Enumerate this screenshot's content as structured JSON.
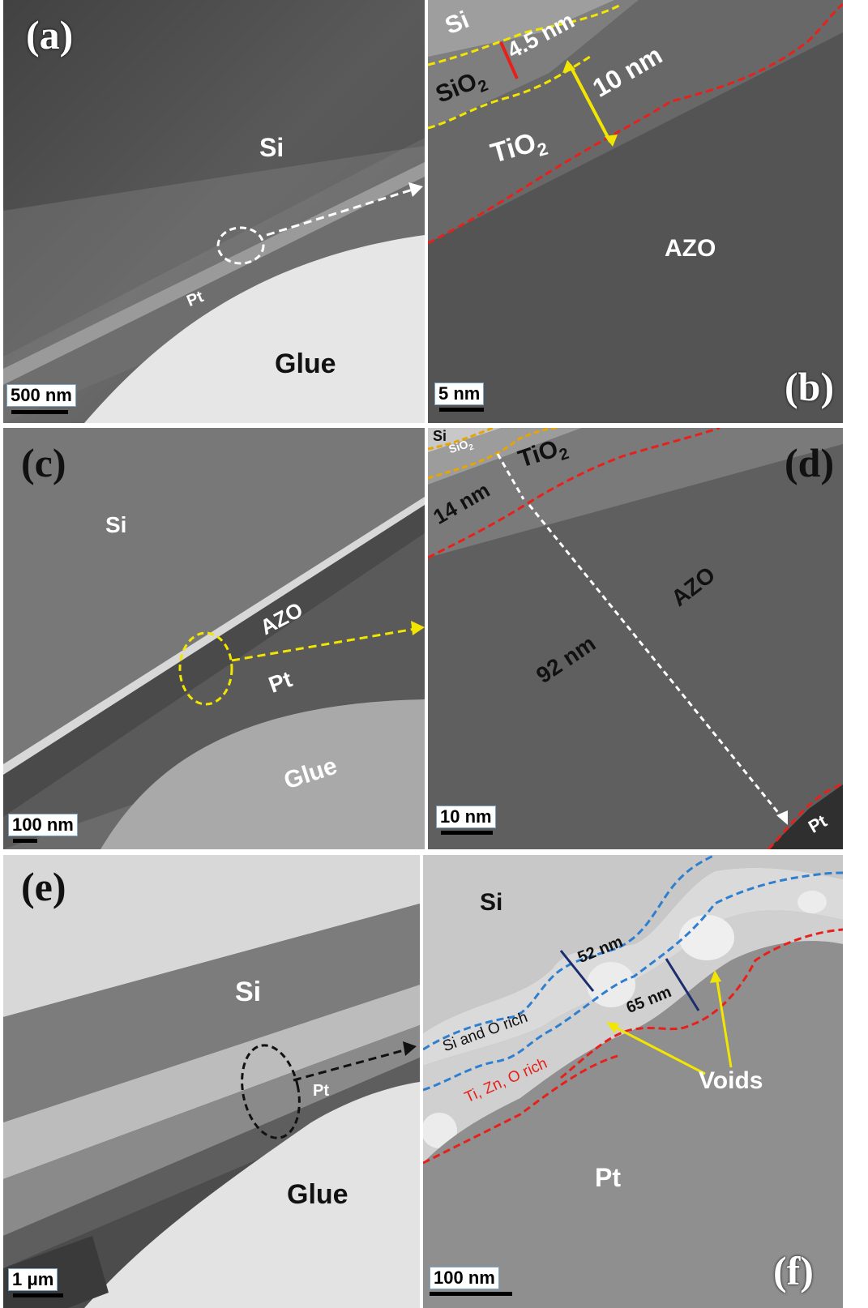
{
  "panels": {
    "a": {
      "label": "(a)",
      "scale": "500 nm",
      "texts": {
        "si": "Si",
        "pt": "Pt",
        "glue": "Glue"
      }
    },
    "b": {
      "label": "(b)",
      "scale": "5 nm",
      "texts": {
        "si": "Si",
        "sio2": "SiO",
        "sio2_sub": "2",
        "t1": "4.5 nm",
        "t2": "10 nm",
        "tio2": "TiO",
        "tio2_sub": "2",
        "azo": "AZO"
      }
    },
    "c": {
      "label": "(c)",
      "scale": "100 nm",
      "texts": {
        "si": "Si",
        "azo": "AZO",
        "pt": "Pt",
        "glue": "Glue"
      }
    },
    "d": {
      "label": "(d)",
      "scale": "10 nm",
      "texts": {
        "si": "Si",
        "sio2": "SiO",
        "sio2_sub": "2",
        "tio2": "TiO",
        "tio2_sub": "2",
        "t1": "14 nm",
        "t2": "92 nm",
        "azo": "AZO",
        "pt": "Pt"
      }
    },
    "e": {
      "label": "(e)",
      "scale": "1 μm",
      "texts": {
        "si": "Si",
        "pt": "Pt",
        "glue": "Glue"
      }
    },
    "f": {
      "label": "(f)",
      "scale": "100 nm",
      "texts": {
        "si": "Si",
        "t1": "52 nm",
        "t2": "65 nm",
        "rich1": "Si and O rich",
        "rich2": "Ti, Zn, O rich",
        "voids": "Voids",
        "pt": "Pt"
      }
    }
  },
  "colors": {
    "yellow_dash": "#f2e600",
    "red_dash": "#e8201a",
    "blue_dash": "#2f7fd0",
    "navy_arrow": "#1a2e6e",
    "orange_dash": "#e8a400"
  }
}
